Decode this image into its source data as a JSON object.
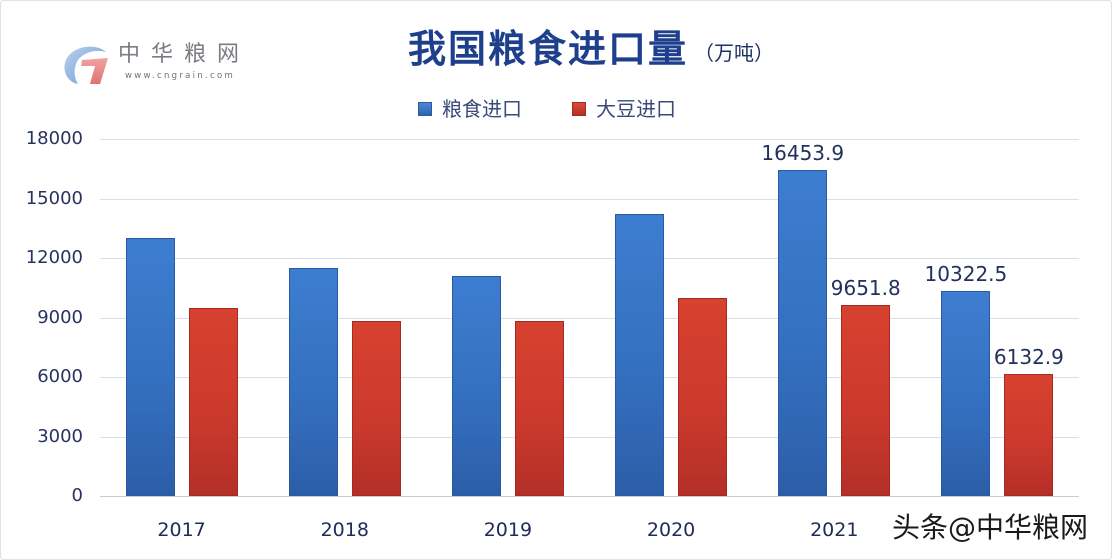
{
  "logo": {
    "name": "中华粮网",
    "url_text": "www.cngrain.com"
  },
  "title": {
    "main": "我国粮食进口量",
    "unit": "（万吨）"
  },
  "legend": [
    {
      "label": "粮食进口",
      "color": "#3a78c8"
    },
    {
      "label": "大豆进口",
      "color": "#d13b30"
    }
  ],
  "watermark": "头条@中华粮网",
  "chart_data": {
    "type": "bar",
    "title": "我国粮食进口量（万吨）",
    "xlabel": "",
    "ylabel": "",
    "categories": [
      "2017",
      "2018",
      "2019",
      "2020",
      "2021",
      ""
    ],
    "series": [
      {
        "name": "粮食进口",
        "color": "#3a78c8",
        "values": [
          13000,
          11500,
          11100,
          14200,
          16453.9,
          10322.5
        ],
        "data_labels": [
          null,
          null,
          null,
          null,
          "16453.9",
          "10322.5"
        ]
      },
      {
        "name": "大豆进口",
        "color": "#d13b30",
        "values": [
          9500,
          8800,
          8800,
          10000,
          9651.8,
          6132.9
        ],
        "data_labels": [
          null,
          null,
          null,
          null,
          "9651.8",
          "6132.9"
        ]
      }
    ],
    "ylim": [
      0,
      18000
    ],
    "yticks": [
      0,
      3000,
      6000,
      9000,
      12000,
      15000,
      18000
    ],
    "grid": true,
    "legend_position": "top"
  }
}
